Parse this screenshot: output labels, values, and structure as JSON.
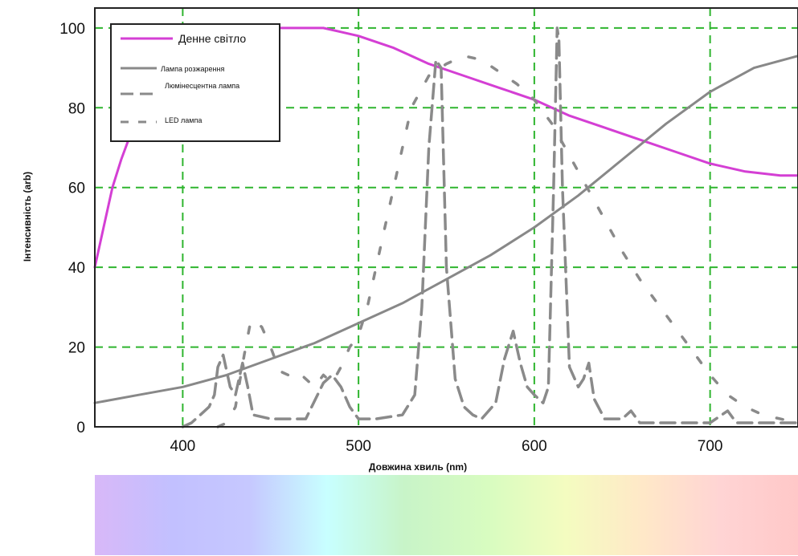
{
  "chart_data": {
    "type": "line",
    "title": "",
    "xlabel": "Довжина хвиль (nm)",
    "ylabel": "Інтенсивність (arb)",
    "xlim": [
      350,
      750
    ],
    "ylim": [
      0,
      105
    ],
    "xticks": [
      400,
      500,
      600,
      700
    ],
    "yticks": [
      0,
      20,
      40,
      60,
      80,
      100
    ],
    "grid": true,
    "legend_position": "top-left",
    "series": [
      {
        "name": "Денне світло",
        "color": "#d43fd4",
        "style": "solid",
        "points": [
          [
            350,
            40
          ],
          [
            355,
            50
          ],
          [
            360,
            60
          ],
          [
            365,
            67
          ],
          [
            370,
            73
          ],
          [
            375,
            80
          ],
          [
            380,
            85
          ],
          [
            385,
            89
          ],
          [
            390,
            92
          ],
          [
            395,
            95
          ],
          [
            400,
            97
          ],
          [
            410,
            99
          ],
          [
            420,
            100
          ],
          [
            440,
            100
          ],
          [
            460,
            100
          ],
          [
            480,
            100
          ],
          [
            490,
            99
          ],
          [
            500,
            98
          ],
          [
            520,
            95
          ],
          [
            540,
            91
          ],
          [
            560,
            88
          ],
          [
            580,
            85
          ],
          [
            600,
            82
          ],
          [
            620,
            78
          ],
          [
            640,
            75
          ],
          [
            660,
            72
          ],
          [
            680,
            69
          ],
          [
            700,
            66
          ],
          [
            720,
            64
          ],
          [
            740,
            63
          ],
          [
            750,
            63
          ]
        ]
      },
      {
        "name": "Лампа розжарення",
        "color": "#888888",
        "style": "solid",
        "points": [
          [
            350,
            6
          ],
          [
            375,
            8
          ],
          [
            400,
            10
          ],
          [
            425,
            13
          ],
          [
            450,
            17
          ],
          [
            475,
            21
          ],
          [
            500,
            26
          ],
          [
            525,
            31
          ],
          [
            550,
            37
          ],
          [
            575,
            43
          ],
          [
            600,
            50
          ],
          [
            625,
            58
          ],
          [
            650,
            67
          ],
          [
            675,
            76
          ],
          [
            700,
            84
          ],
          [
            725,
            90
          ],
          [
            750,
            93
          ]
        ]
      },
      {
        "name": "Люмінесцентна лампа",
        "color": "#8a8a8a",
        "style": "dashed",
        "points": [
          [
            400,
            0
          ],
          [
            405,
            1
          ],
          [
            410,
            3
          ],
          [
            415,
            5
          ],
          [
            418,
            8
          ],
          [
            420,
            15
          ],
          [
            423,
            18
          ],
          [
            427,
            10
          ],
          [
            430,
            8
          ],
          [
            434,
            16
          ],
          [
            437,
            10
          ],
          [
            440,
            3
          ],
          [
            450,
            2
          ],
          [
            470,
            2
          ],
          [
            480,
            11
          ],
          [
            485,
            13
          ],
          [
            490,
            10
          ],
          [
            495,
            5
          ],
          [
            500,
            2
          ],
          [
            510,
            2
          ],
          [
            525,
            3
          ],
          [
            532,
            8
          ],
          [
            536,
            30
          ],
          [
            540,
            70
          ],
          [
            544,
            92
          ],
          [
            547,
            90
          ],
          [
            550,
            40
          ],
          [
            555,
            12
          ],
          [
            560,
            5
          ],
          [
            565,
            3
          ],
          [
            570,
            2
          ],
          [
            578,
            6
          ],
          [
            583,
            17
          ],
          [
            588,
            24
          ],
          [
            592,
            16
          ],
          [
            596,
            10
          ],
          [
            600,
            8
          ],
          [
            605,
            6
          ],
          [
            608,
            10
          ],
          [
            611,
            60
          ],
          [
            613,
            100
          ],
          [
            614,
            97
          ],
          [
            616,
            60
          ],
          [
            620,
            15
          ],
          [
            625,
            10
          ],
          [
            628,
            12
          ],
          [
            631,
            16
          ],
          [
            634,
            7
          ],
          [
            640,
            2
          ],
          [
            650,
            2
          ],
          [
            655,
            4
          ],
          [
            660,
            1
          ],
          [
            700,
            1
          ],
          [
            710,
            4
          ],
          [
            715,
            1
          ],
          [
            750,
            1
          ]
        ]
      },
      {
        "name": "LED лампа",
        "color": "#8a8a8a",
        "style": "longdash",
        "points": [
          [
            420,
            0
          ],
          [
            425,
            1
          ],
          [
            430,
            5
          ],
          [
            435,
            18
          ],
          [
            438,
            25
          ],
          [
            440,
            27
          ],
          [
            445,
            25
          ],
          [
            450,
            20
          ],
          [
            455,
            14
          ],
          [
            460,
            13
          ],
          [
            465,
            14
          ],
          [
            470,
            12
          ],
          [
            475,
            10
          ],
          [
            480,
            13
          ],
          [
            485,
            11
          ],
          [
            490,
            15
          ],
          [
            495,
            20
          ],
          [
            500,
            23
          ],
          [
            505,
            30
          ],
          [
            510,
            40
          ],
          [
            515,
            50
          ],
          [
            520,
            60
          ],
          [
            525,
            70
          ],
          [
            530,
            80
          ],
          [
            540,
            88
          ],
          [
            550,
            91
          ],
          [
            560,
            93
          ],
          [
            570,
            92
          ],
          [
            580,
            89
          ],
          [
            590,
            86
          ],
          [
            600,
            82
          ],
          [
            610,
            76
          ],
          [
            620,
            68
          ],
          [
            630,
            60
          ],
          [
            640,
            52
          ],
          [
            650,
            44
          ],
          [
            660,
            37
          ],
          [
            670,
            31
          ],
          [
            680,
            25
          ],
          [
            690,
            19
          ],
          [
            700,
            13
          ],
          [
            710,
            8
          ],
          [
            720,
            5
          ],
          [
            730,
            3
          ],
          [
            740,
            2
          ],
          [
            750,
            1
          ]
        ]
      }
    ]
  },
  "spectrum_colors": [
    "#d8b8f8",
    "#c2c0ff",
    "#c6c8ff",
    "#c8ffff",
    "#c8f4c8",
    "#d8fcc0",
    "#f4fcc0",
    "#ffe8c8",
    "#ffd4d4",
    "#ffc8c8"
  ]
}
